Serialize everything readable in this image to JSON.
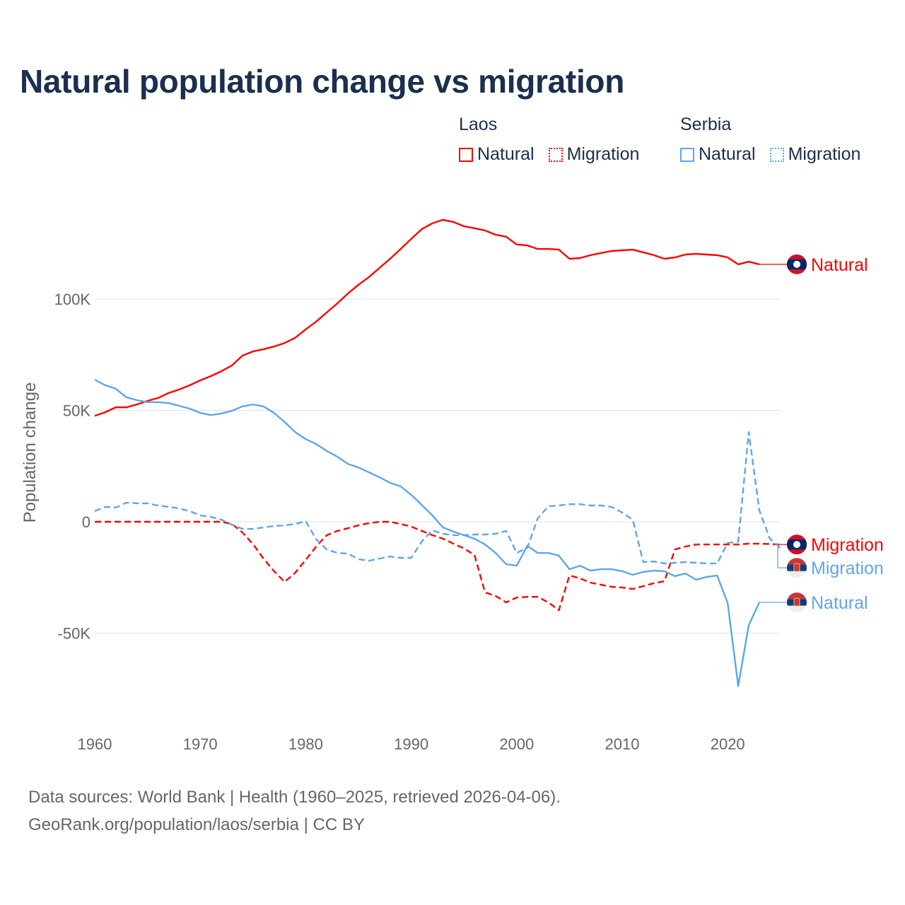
{
  "title": "Natural population change vs migration",
  "legend": {
    "groups": [
      {
        "name": "Laos",
        "color": "#ff0000",
        "items": [
          {
            "label": "Natural",
            "style": "solid"
          },
          {
            "label": "Migration",
            "style": "dotted"
          }
        ]
      },
      {
        "name": "Serbia",
        "color": "#5ea6ea",
        "items": [
          {
            "label": "Natural",
            "style": "solid"
          },
          {
            "label": "Migration",
            "style": "dotted"
          }
        ]
      }
    ]
  },
  "source": {
    "line1": "Data sources: World Bank | Health (1960–2025, retrieved 2026-04-06).",
    "line2": "GeoRank.org/population/laos/serbia | CC BY"
  },
  "chart_data": {
    "type": "line",
    "title": "Natural population change vs migration",
    "xlabel": "",
    "ylabel": "Population change",
    "xlim": [
      1960,
      2025
    ],
    "ylim": [
      -80000,
      145000
    ],
    "grid": true,
    "legend_placement": "top-right",
    "x_ticks": [
      1960,
      1970,
      1980,
      1990,
      2000,
      2010,
      2020
    ],
    "x_tick_labels": [
      "1960",
      "1970",
      "1980",
      "1990",
      "2000",
      "2010",
      "2020"
    ],
    "y_ticks": [
      100000,
      50000,
      0,
      -50000
    ],
    "y_tick_labels": [
      "100K",
      "50K",
      "0",
      "-50K"
    ],
    "x_start": 1960,
    "series": [
      {
        "name": "Laos Natural",
        "country": "Laos",
        "kind": "Natural",
        "color": "#ff0000",
        "dashed": false,
        "end_label": "Natural",
        "values": [
          47600,
          49200,
          51400,
          51400,
          52700,
          54300,
          55600,
          57800,
          59400,
          61300,
          63500,
          65400,
          67600,
          70200,
          74600,
          76500,
          77500,
          78700,
          80300,
          82600,
          86400,
          89900,
          94000,
          98100,
          102500,
          106400,
          109900,
          114000,
          118100,
          122500,
          127000,
          131400,
          134000,
          135600,
          134600,
          132700,
          131800,
          130800,
          128900,
          128000,
          124500,
          124100,
          122500,
          122500,
          122200,
          118100,
          118400,
          119700,
          120700,
          121600,
          121900,
          122200,
          121000,
          119700,
          118100,
          118700,
          120000,
          120300,
          120000,
          119700,
          118700,
          115600,
          116800,
          115600
        ]
      },
      {
        "name": "Laos Migration",
        "country": "Laos",
        "kind": "Migration",
        "color": "#ff0000",
        "dashed": true,
        "end_label": "Migration",
        "values": [
          0,
          0,
          0,
          0,
          0,
          0,
          0,
          0,
          0,
          0,
          0,
          0,
          0,
          -1000,
          -4800,
          -10000,
          -16500,
          -22200,
          -27000,
          -22900,
          -17100,
          -11100,
          -6000,
          -4100,
          -2900,
          -1600,
          -600,
          0,
          0,
          -1000,
          -2200,
          -4100,
          -6000,
          -7600,
          -9800,
          -12000,
          -14900,
          -31700,
          -33300,
          -36200,
          -34000,
          -33700,
          -33700,
          -36200,
          -39700,
          -24100,
          -25400,
          -27300,
          -28300,
          -29200,
          -29500,
          -30200,
          -28900,
          -27600,
          -26700,
          -12400,
          -11100,
          -10200,
          -10200,
          -10200,
          -10200,
          -10200,
          -9800,
          -9800,
          -10000,
          -10200
        ]
      },
      {
        "name": "Serbia Migration",
        "country": "Serbia",
        "kind": "Migration",
        "color": "#5ea6ea",
        "dashed": true,
        "end_label": "Migration",
        "values": [
          4800,
          6700,
          6400,
          8600,
          8300,
          8300,
          7300,
          6700,
          6000,
          4800,
          2900,
          2200,
          1000,
          -1300,
          -3200,
          -3200,
          -2500,
          -1900,
          -1600,
          -1000,
          300,
          -7900,
          -12400,
          -14000,
          -14300,
          -16800,
          -17500,
          -16500,
          -15600,
          -16200,
          -16200,
          -8900,
          -3800,
          -5400,
          -6000,
          -6000,
          -5700,
          -5700,
          -5400,
          -4100,
          -14000,
          -11700,
          1600,
          7000,
          7300,
          7900,
          7900,
          7300,
          7300,
          6700,
          4100,
          1000,
          -18100,
          -17800,
          -18700,
          -18400,
          -18100,
          -18400,
          -18700,
          -18700,
          -9500,
          -8900,
          40300,
          5100,
          -7600,
          -11700
        ]
      },
      {
        "name": "Serbia Natural",
        "country": "Serbia",
        "kind": "Natural",
        "color": "#5ea6ea",
        "dashed": false,
        "end_label": "Natural",
        "values": [
          63800,
          61300,
          59700,
          55900,
          54600,
          53700,
          53700,
          53300,
          52100,
          50800,
          48900,
          47900,
          48600,
          49800,
          51800,
          52700,
          51800,
          48900,
          44800,
          40300,
          37100,
          34900,
          31800,
          29200,
          26000,
          24400,
          22200,
          20000,
          17500,
          15900,
          12100,
          7600,
          2900,
          -2500,
          -4400,
          -6000,
          -7600,
          -10200,
          -14000,
          -19000,
          -19700,
          -10800,
          -14000,
          -14000,
          -15200,
          -21300,
          -19700,
          -21900,
          -21300,
          -21300,
          -22200,
          -23800,
          -22500,
          -21900,
          -22200,
          -24400,
          -23200,
          -26000,
          -24800,
          -24100,
          -36500,
          -73700,
          -46400,
          -36200
        ]
      }
    ]
  }
}
